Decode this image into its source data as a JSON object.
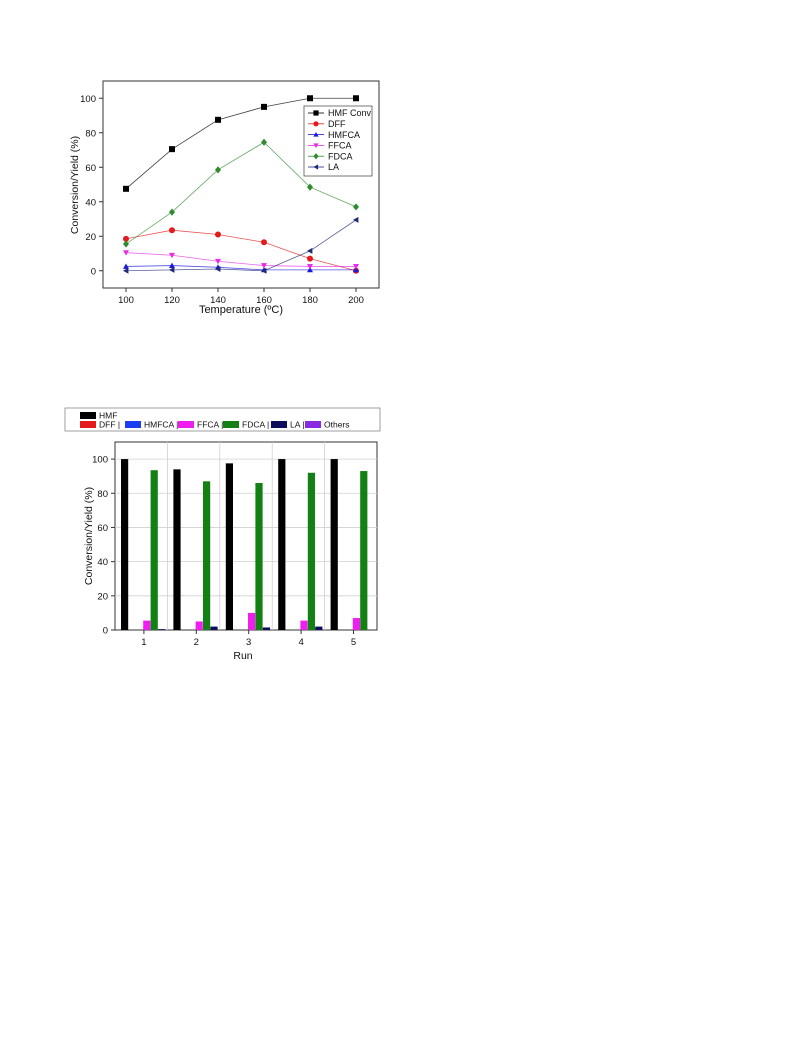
{
  "chart_data": [
    {
      "type": "line",
      "xlabel": "Temperature (ºC)",
      "ylabel": "Conversion/Yield (%)",
      "xlim": [
        90,
        210
      ],
      "ylim": [
        -10,
        110
      ],
      "xticks": [
        100,
        120,
        140,
        160,
        180,
        200
      ],
      "yticks": [
        0,
        20,
        40,
        60,
        80,
        100
      ],
      "grid": false,
      "legend_position": "top-right",
      "x": [
        100,
        120,
        140,
        160,
        180,
        200
      ],
      "series": [
        {
          "name": "HMF Conv",
          "color": "#000000",
          "marker": "square",
          "values": [
            47.5,
            70.5,
            87.5,
            95,
            100,
            100
          ]
        },
        {
          "name": "DFF",
          "color": "#e41a1c",
          "marker": "circle",
          "values": [
            18.5,
            23.5,
            21,
            16.5,
            7,
            0
          ]
        },
        {
          "name": "HMFCA",
          "color": "#1a1adb",
          "marker": "triangle-up",
          "values": [
            2.5,
            3,
            2,
            0.5,
            0.5,
            0.5
          ]
        },
        {
          "name": "FFCA",
          "color": "#e62ee6",
          "marker": "triangle-down",
          "values": [
            10.5,
            9,
            5.5,
            3,
            2.5,
            2.5
          ]
        },
        {
          "name": "FDCA",
          "color": "#2e8b2e",
          "marker": "diamond",
          "values": [
            15.5,
            34,
            58.5,
            74.5,
            48.5,
            37
          ]
        },
        {
          "name": "LA",
          "color": "#1f2a7a",
          "marker": "triangle-left",
          "values": [
            0,
            0.5,
            1,
            0,
            11.5,
            29.5
          ]
        }
      ]
    },
    {
      "type": "bar",
      "xlabel": "Run",
      "ylabel": "Conversion/Yield (%)",
      "ylim": [
        0,
        110
      ],
      "yticks": [
        0,
        20,
        40,
        60,
        80,
        100
      ],
      "grid": true,
      "legend_position": "top",
      "categories": [
        "1",
        "2",
        "3",
        "4",
        "5"
      ],
      "legend_row1": [
        "HMF"
      ],
      "legend_row2": [
        "DFF |",
        "HMFCA |",
        "FFCA |",
        "FDCA |",
        "LA |",
        "Others"
      ],
      "series": [
        {
          "name": "HMF",
          "color": "#000000",
          "values": [
            100,
            94,
            97.5,
            100,
            100
          ]
        },
        {
          "name": "DFF",
          "color": "#e41a1c",
          "values": [
            0,
            0,
            0,
            0,
            0
          ]
        },
        {
          "name": "HMFCA",
          "color": "#1a3ef0",
          "values": [
            0,
            0,
            0,
            0,
            0
          ]
        },
        {
          "name": "FFCA",
          "color": "#ee1fee",
          "values": [
            5.5,
            5,
            10,
            5.5,
            7
          ]
        },
        {
          "name": "FDCA",
          "color": "#128012",
          "values": [
            93.5,
            87,
            86,
            92,
            93
          ]
        },
        {
          "name": "LA",
          "color": "#0d0d5c",
          "values": [
            0.5,
            2,
            1.5,
            2,
            0
          ]
        },
        {
          "name": "Others",
          "color": "#8a2be2",
          "values": [
            0,
            0,
            0,
            0,
            0
          ]
        }
      ]
    }
  ]
}
